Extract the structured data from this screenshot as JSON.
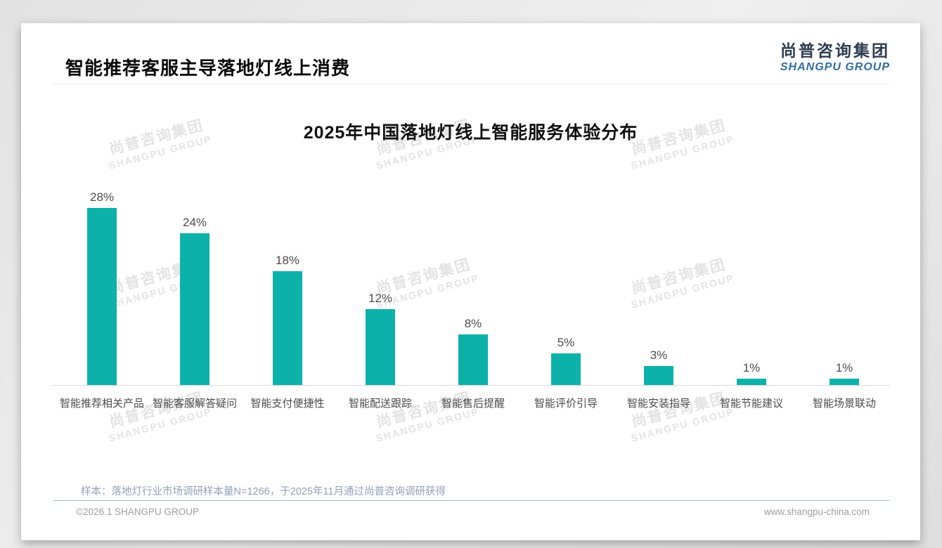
{
  "page": {
    "title": "智能推荐客服主导落地灯线上消费",
    "logo": {
      "cn": "尚普咨询集团",
      "en": "SHANGPU GROUP"
    },
    "watermark": {
      "line1": "尚普咨询集团",
      "line2": "SHANGPU GROUP"
    },
    "footer": {
      "note": "样本：落地灯行业市场调研样本量N=1266，于2025年11月通过尚普咨询调研获得",
      "copyright": "©2026.1 SHANGPU GROUP",
      "website": "www.shangpu-china.com"
    }
  },
  "colors": {
    "bar": "#0cb2aa",
    "logo_cn": "#2c3c50",
    "logo_en": "#2e6da4",
    "note_text": "#93a0b8",
    "watermark": "#e3e3e3"
  },
  "chart_data": {
    "type": "bar",
    "title": "2025年中国落地灯线上智能服务体验分布",
    "categories": [
      "智能推荐相关产品",
      "智能客服解答疑问",
      "智能支付便捷性",
      "智能配送跟踪",
      "智能售后提醒",
      "智能评价引导",
      "智能安装指导",
      "智能节能建议",
      "智能场景联动"
    ],
    "values": [
      28,
      24,
      18,
      12,
      8,
      5,
      3,
      1,
      1
    ],
    "value_labels": [
      "28%",
      "24%",
      "18%",
      "12%",
      "8%",
      "5%",
      "3%",
      "1%",
      "1%"
    ],
    "unit": "%",
    "xlabel": "",
    "ylabel": "",
    "ylim": [
      0,
      30
    ],
    "grid": false,
    "legend": false,
    "bar_color": "#0cb2aa"
  }
}
